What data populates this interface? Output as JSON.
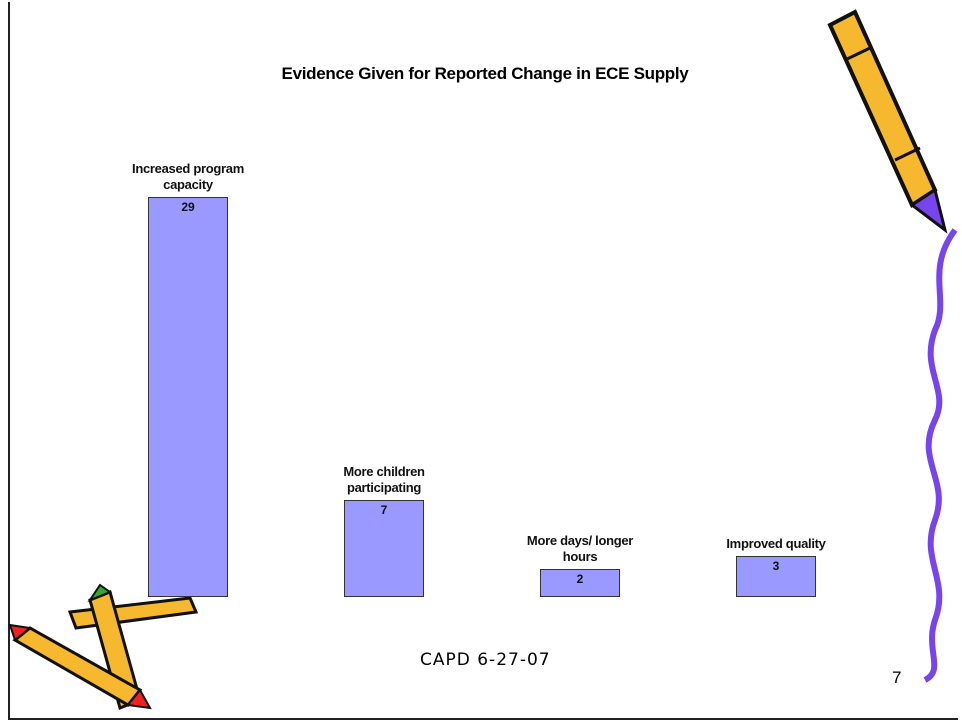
{
  "chart_data": {
    "type": "bar",
    "title": "Evidence Given for Reported Change in ECE Supply",
    "categories": [
      "Increased program capacity",
      "More children participating",
      "More days/ longer hours",
      "Improved quality"
    ],
    "values": [
      29,
      7,
      2,
      3
    ],
    "color": "#9999ff"
  },
  "footer": "CAPD 6-27-07",
  "page_number": "7"
}
